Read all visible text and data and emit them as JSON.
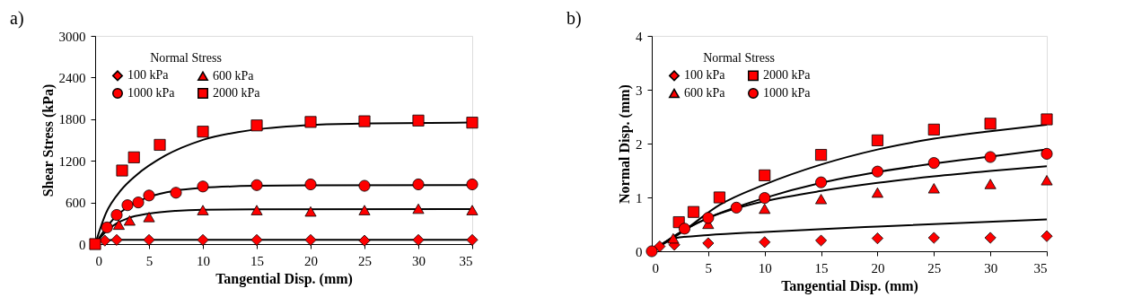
{
  "chart_data": [
    {
      "type": "scatter",
      "title": "a)",
      "xlabel": "Tangential Disp. (mm)",
      "ylabel": "Shear Stress (kPa)",
      "legend_title": "Normal Stress",
      "legend": "top left",
      "grid": false,
      "xlim": [
        0,
        35
      ],
      "xticks": [
        0,
        5,
        10,
        15,
        20,
        25,
        30,
        35
      ],
      "ylim": [
        0,
        3000
      ],
      "yticks": [
        0,
        600,
        1200,
        1800,
        2400,
        3000
      ],
      "series": [
        {
          "name": "100 kPa",
          "marker": "diamond",
          "color": "#ff0000",
          "x": [
            0.9,
            2,
            5,
            10,
            15,
            20,
            25,
            30,
            35
          ],
          "values": [
            50,
            60,
            60,
            60,
            60,
            60,
            50,
            60,
            60
          ]
        },
        {
          "name": "600 kPa",
          "marker": "triangle",
          "color": "#ff0000",
          "x": [
            2.2,
            3.2,
            5,
            10,
            15,
            20,
            25,
            30,
            35
          ],
          "values": [
            280,
            340,
            390,
            490,
            490,
            470,
            490,
            510,
            490
          ]
        },
        {
          "name": "1000 kPa",
          "marker": "circle",
          "color": "#ff0000",
          "x": [
            1.1,
            2,
            3,
            4,
            5,
            7.5,
            10,
            15,
            20,
            25,
            30,
            35
          ],
          "values": [
            240,
            420,
            560,
            600,
            700,
            740,
            830,
            850,
            860,
            840,
            860,
            860
          ]
        },
        {
          "name": "2000 kPa",
          "marker": "square",
          "color": "#ff0000",
          "x": [
            0,
            2.5,
            3.6,
            6,
            10,
            15,
            20,
            25,
            30,
            35
          ],
          "values": [
            0,
            1060,
            1250,
            1430,
            1620,
            1710,
            1760,
            1770,
            1780,
            1750
          ]
        },
        {
          "type": "line",
          "color": "#000000",
          "x": [
            0,
            0.5,
            1,
            2,
            35
          ],
          "values": [
            0,
            40,
            55,
            60,
            62
          ]
        },
        {
          "type": "line",
          "color": "#000000",
          "x": [
            0,
            1,
            2,
            3,
            5,
            7.5,
            10,
            15,
            35
          ],
          "values": [
            0,
            180,
            300,
            370,
            440,
            480,
            495,
            500,
            505
          ]
        },
        {
          "type": "line",
          "color": "#000000",
          "x": [
            0,
            1,
            2,
            3,
            5,
            7.5,
            10,
            15,
            20,
            35
          ],
          "values": [
            0,
            230,
            410,
            530,
            680,
            770,
            810,
            840,
            848,
            850
          ]
        },
        {
          "type": "line",
          "color": "#000000",
          "x": [
            0,
            1,
            2.4,
            3.75,
            6.5,
            10,
            14.7,
            20.2,
            25.7,
            35
          ],
          "values": [
            0,
            444,
            776,
            983,
            1274,
            1502,
            1647,
            1718,
            1739,
            1752
          ]
        }
      ]
    },
    {
      "type": "scatter",
      "title": "b)",
      "xlabel": "Tangential Disp. (mm)",
      "ylabel": "Normal Disp. (mm)",
      "legend_title": "Normal Stress",
      "legend": "top left",
      "grid": false,
      "xlim": [
        0,
        35
      ],
      "xticks": [
        0,
        5,
        10,
        15,
        20,
        25,
        30,
        35
      ],
      "ylim": [
        0,
        4
      ],
      "yticks": [
        0,
        1,
        2,
        3,
        4
      ],
      "series": [
        {
          "name": "100 kPa",
          "marker": "diamond",
          "color": "#ff0000",
          "x": [
            0.7,
            2,
            5,
            10,
            15,
            20,
            25,
            30,
            35
          ],
          "values": [
            0.09,
            0.12,
            0.15,
            0.17,
            0.2,
            0.24,
            0.25,
            0.25,
            0.28
          ]
        },
        {
          "name": "2000 kPa",
          "marker": "square",
          "color": "#ff0000",
          "x": [
            2.4,
            3.7,
            6,
            10,
            15,
            20,
            25,
            30,
            35
          ],
          "values": [
            0.54,
            0.73,
            1.0,
            1.41,
            1.79,
            2.06,
            2.26,
            2.37,
            2.45
          ]
        },
        {
          "name": "600 kPa",
          "marker": "triangle",
          "color": "#ff0000",
          "x": [
            1.9,
            5,
            10,
            15,
            20,
            25,
            30,
            35
          ],
          "values": [
            0.24,
            0.51,
            0.79,
            0.97,
            1.09,
            1.17,
            1.25,
            1.32
          ]
        },
        {
          "name": "1000 kPa",
          "marker": "circle",
          "color": "#ff0000",
          "x": [
            0,
            2.9,
            5,
            7.5,
            10,
            15,
            20,
            25,
            30,
            35
          ],
          "values": [
            0,
            0.42,
            0.62,
            0.81,
            0.99,
            1.28,
            1.48,
            1.64,
            1.75,
            1.81
          ]
        },
        {
          "type": "line",
          "color": "#000000",
          "x": [
            0,
            1,
            2,
            5,
            10,
            20,
            35
          ],
          "values": [
            0,
            0.15,
            0.24,
            0.3,
            0.36,
            0.46,
            0.59
          ]
        },
        {
          "type": "line",
          "color": "#000000",
          "x": [
            0,
            2.5,
            6,
            10,
            15,
            20,
            25,
            30,
            35
          ],
          "values": [
            0,
            0.33,
            0.86,
            1.24,
            1.61,
            1.89,
            2.09,
            2.23,
            2.35
          ]
        },
        {
          "type": "line",
          "color": "#000000",
          "x": [
            0,
            2.5,
            5,
            7.5,
            10,
            15,
            20,
            25,
            30,
            35
          ],
          "values": [
            0,
            0.35,
            0.62,
            0.8,
            0.93,
            1.12,
            1.27,
            1.39,
            1.49,
            1.58
          ]
        },
        {
          "type": "line",
          "color": "#000000",
          "x": [
            0,
            2.5,
            5,
            7.5,
            10,
            15,
            20,
            25,
            30,
            35
          ],
          "values": [
            0,
            0.35,
            0.62,
            0.82,
            0.99,
            1.27,
            1.47,
            1.63,
            1.76,
            1.89
          ]
        }
      ]
    }
  ]
}
